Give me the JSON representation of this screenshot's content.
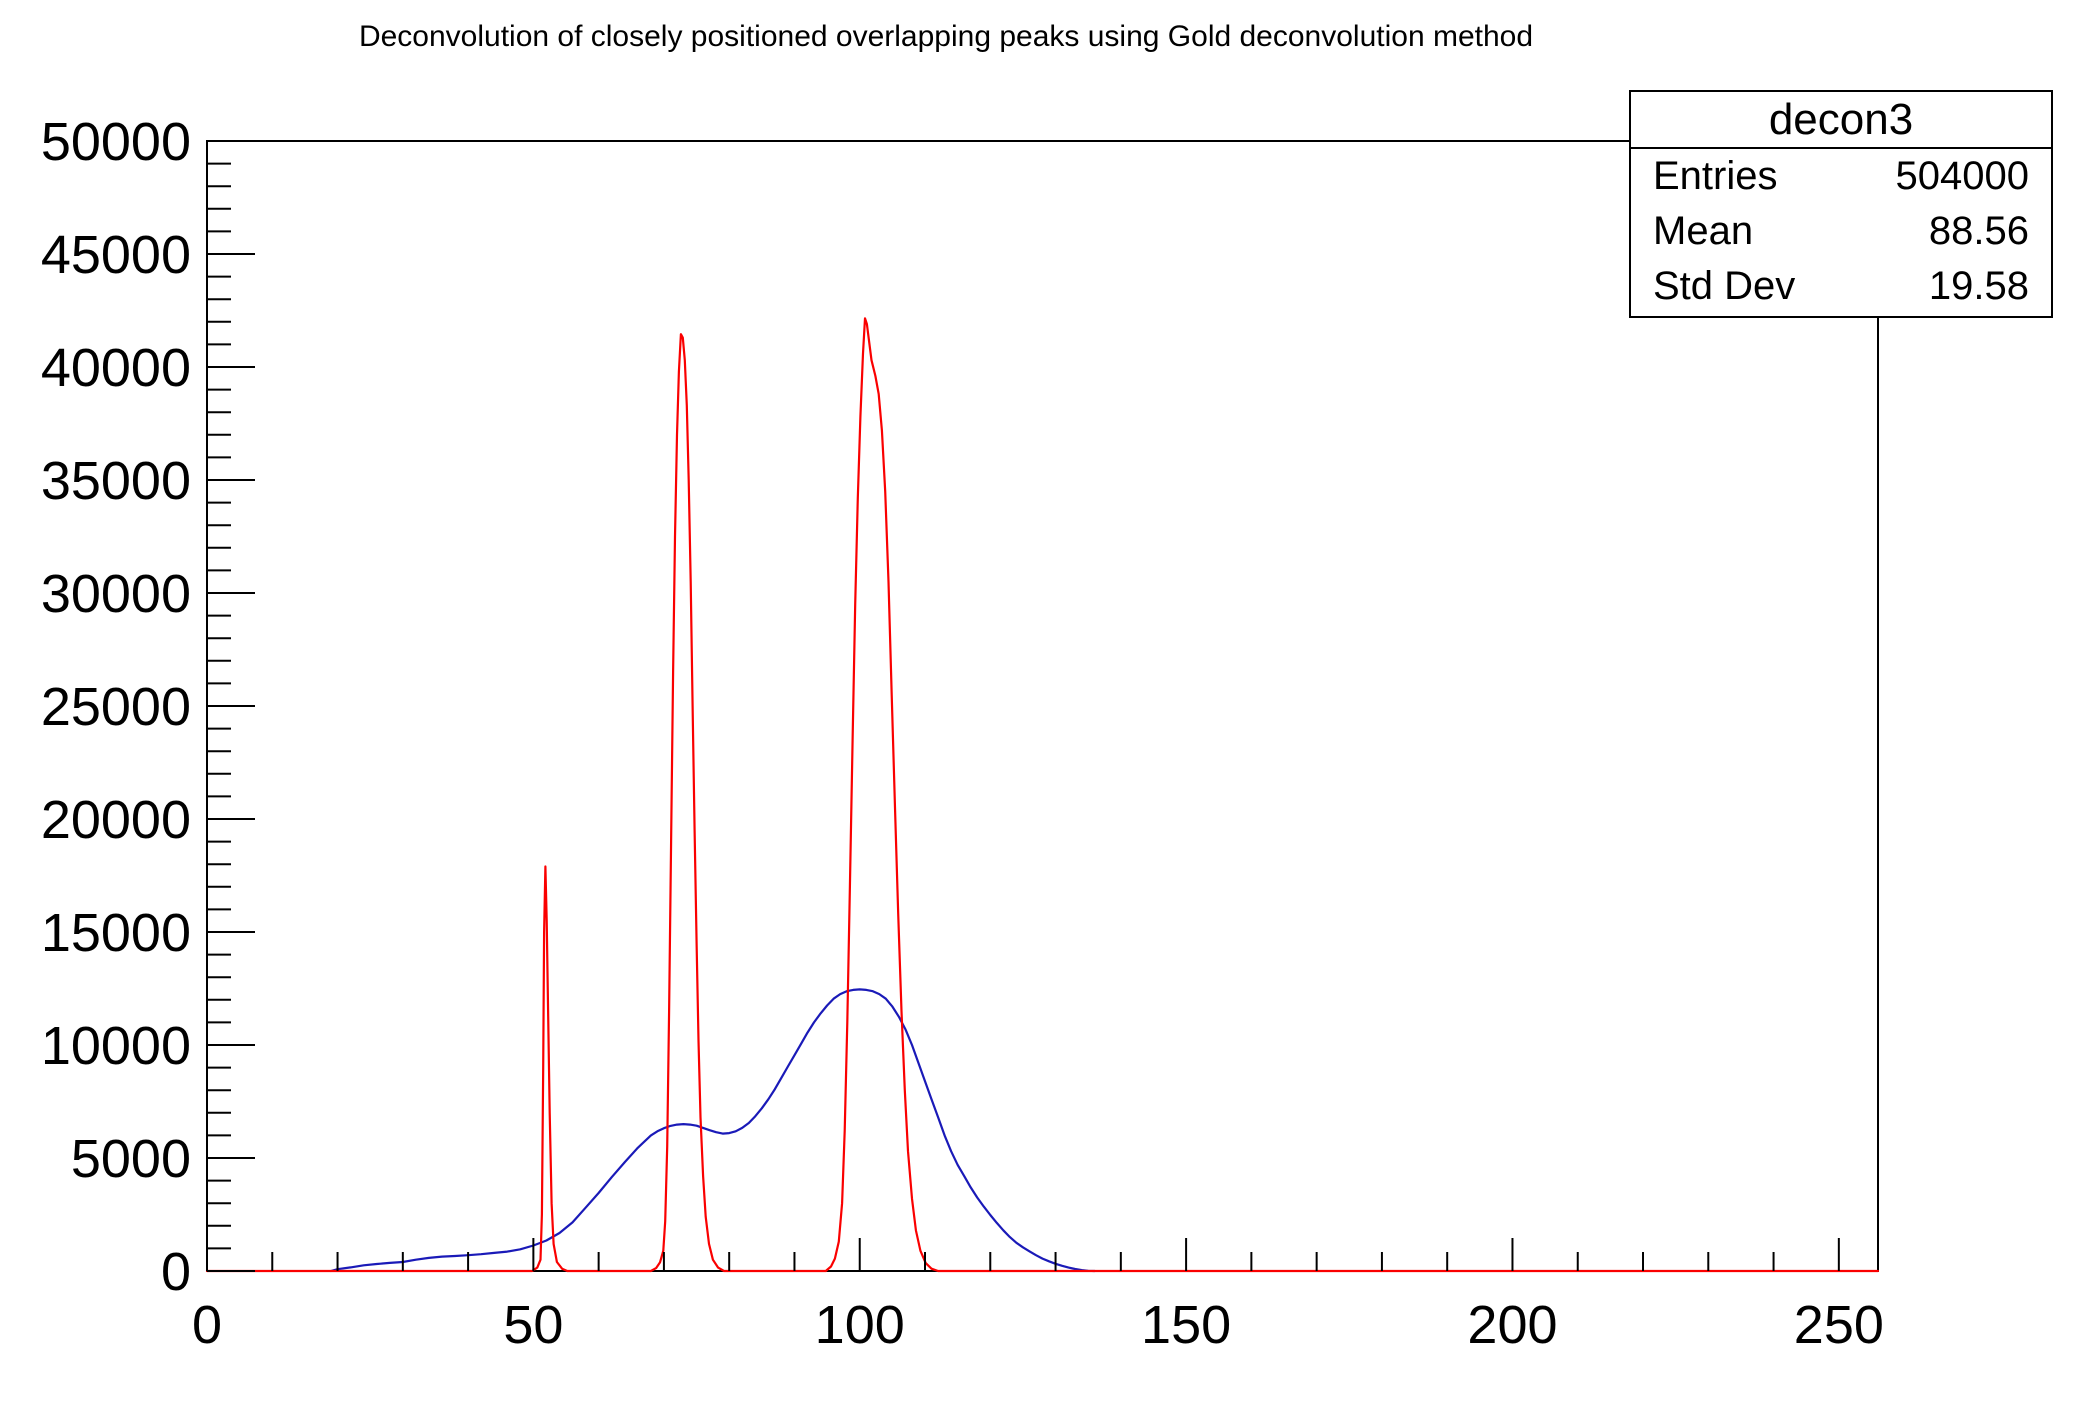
{
  "title": "Deconvolution of closely positioned overlapping peaks using Gold deconvolution method",
  "stats_box": {
    "title": "decon3",
    "rows": [
      {
        "label": "Entries",
        "value": "504000"
      },
      {
        "label": "Mean",
        "value": "88.56"
      },
      {
        "label": "Std Dev",
        "value": "19.58"
      }
    ]
  },
  "chart_data": {
    "type": "line",
    "title": "Deconvolution of closely positioned overlapping peaks using Gold deconvolution method",
    "xlabel": "",
    "ylabel": "",
    "grid": false,
    "legend_position": "none",
    "x_axis": {
      "min": 0,
      "max": 256,
      "major_ticks": [
        0,
        50,
        100,
        150,
        200,
        250
      ],
      "minor_step": 10,
      "major_every": 50
    },
    "y_axis": {
      "min": 0,
      "max": 50000,
      "major_ticks": [
        0,
        5000,
        10000,
        15000,
        20000,
        25000,
        30000,
        35000,
        40000,
        45000,
        50000
      ],
      "minor_step": 1000,
      "major_every": 5000
    },
    "colors": {
      "axis": "#000000",
      "source": "#1a1ab8",
      "deconvolution": "#fa0000"
    },
    "series": [
      {
        "name": "source spectrum (blue)",
        "color_key": "source",
        "points": [
          [
            19,
            0
          ],
          [
            20,
            80
          ],
          [
            22,
            160
          ],
          [
            24,
            250
          ],
          [
            26,
            310
          ],
          [
            28,
            360
          ],
          [
            30,
            400
          ],
          [
            32,
            500
          ],
          [
            34,
            580
          ],
          [
            36,
            635
          ],
          [
            38,
            665
          ],
          [
            40,
            700
          ],
          [
            42,
            745
          ],
          [
            44,
            800
          ],
          [
            46,
            860
          ],
          [
            48,
            960
          ],
          [
            50,
            1130
          ],
          [
            52,
            1350
          ],
          [
            54,
            1680
          ],
          [
            56,
            2150
          ],
          [
            58,
            2800
          ],
          [
            60,
            3450
          ],
          [
            62,
            4150
          ],
          [
            64,
            4820
          ],
          [
            66,
            5450
          ],
          [
            68,
            6000
          ],
          [
            69,
            6180
          ],
          [
            70,
            6320
          ],
          [
            71,
            6420
          ],
          [
            72,
            6480
          ],
          [
            73,
            6500
          ],
          [
            74,
            6480
          ],
          [
            75,
            6430
          ],
          [
            76,
            6330
          ],
          [
            77,
            6230
          ],
          [
            78,
            6140
          ],
          [
            79,
            6080
          ],
          [
            80,
            6100
          ],
          [
            81,
            6180
          ],
          [
            82,
            6330
          ],
          [
            83,
            6550
          ],
          [
            84,
            6850
          ],
          [
            85,
            7200
          ],
          [
            86,
            7600
          ],
          [
            87,
            8050
          ],
          [
            88,
            8550
          ],
          [
            89,
            9050
          ],
          [
            90,
            9550
          ],
          [
            91,
            10050
          ],
          [
            92,
            10550
          ],
          [
            93,
            11000
          ],
          [
            94,
            11400
          ],
          [
            95,
            11750
          ],
          [
            96,
            12050
          ],
          [
            97,
            12250
          ],
          [
            98,
            12380
          ],
          [
            99,
            12440
          ],
          [
            100,
            12460
          ],
          [
            101,
            12440
          ],
          [
            102,
            12380
          ],
          [
            103,
            12250
          ],
          [
            104,
            12050
          ],
          [
            105,
            11700
          ],
          [
            106,
            11250
          ],
          [
            107,
            10700
          ],
          [
            108,
            10000
          ],
          [
            109,
            9200
          ],
          [
            110,
            8400
          ],
          [
            111,
            7600
          ],
          [
            112,
            6800
          ],
          [
            113,
            6000
          ],
          [
            114,
            5300
          ],
          [
            115,
            4700
          ],
          [
            116,
            4200
          ],
          [
            117,
            3700
          ],
          [
            118,
            3250
          ],
          [
            119,
            2850
          ],
          [
            120,
            2480
          ],
          [
            121,
            2130
          ],
          [
            122,
            1800
          ],
          [
            123,
            1500
          ],
          [
            124,
            1250
          ],
          [
            125,
            1050
          ],
          [
            126,
            870
          ],
          [
            127,
            700
          ],
          [
            128,
            550
          ],
          [
            129,
            430
          ],
          [
            130,
            320
          ],
          [
            131,
            230
          ],
          [
            132,
            150
          ],
          [
            133,
            90
          ],
          [
            134,
            40
          ],
          [
            135,
            10
          ],
          [
            136,
            0
          ]
        ]
      },
      {
        "name": "decon3 Gold deconvolution result (red)",
        "color_key": "deconvolution",
        "points": [
          [
            0,
            0
          ],
          [
            49.8,
            0
          ],
          [
            50.6,
            150
          ],
          [
            51.1,
            500
          ],
          [
            51.3,
            2500
          ],
          [
            51.5,
            9000
          ],
          [
            51.65,
            15000
          ],
          [
            51.85,
            17900
          ],
          [
            52.05,
            15500
          ],
          [
            52.25,
            11500
          ],
          [
            52.5,
            7000
          ],
          [
            52.8,
            3000
          ],
          [
            53.1,
            1200
          ],
          [
            53.6,
            400
          ],
          [
            54.4,
            100
          ],
          [
            55.2,
            0
          ],
          [
            68,
            0
          ],
          [
            68.8,
            130
          ],
          [
            69.4,
            380
          ],
          [
            69.9,
            900
          ],
          [
            70.2,
            2200
          ],
          [
            70.5,
            5500
          ],
          [
            70.8,
            11500
          ],
          [
            71.1,
            19000
          ],
          [
            71.4,
            26500
          ],
          [
            71.7,
            32500
          ],
          [
            72.0,
            37000
          ],
          [
            72.3,
            39800
          ],
          [
            72.6,
            41450
          ],
          [
            72.9,
            41300
          ],
          [
            73.2,
            40300
          ],
          [
            73.5,
            38300
          ],
          [
            73.8,
            35000
          ],
          [
            74.1,
            30500
          ],
          [
            74.4,
            25000
          ],
          [
            74.7,
            19500
          ],
          [
            75.0,
            14500
          ],
          [
            75.3,
            10200
          ],
          [
            75.6,
            6800
          ],
          [
            76.0,
            4200
          ],
          [
            76.4,
            2400
          ],
          [
            76.9,
            1200
          ],
          [
            77.5,
            500
          ],
          [
            78.3,
            150
          ],
          [
            79.2,
            0
          ],
          [
            94.8,
            0
          ],
          [
            95.6,
            200
          ],
          [
            96.2,
            550
          ],
          [
            96.8,
            1300
          ],
          [
            97.3,
            3000
          ],
          [
            97.7,
            6200
          ],
          [
            98.1,
            11000
          ],
          [
            98.5,
            17000
          ],
          [
            98.9,
            23500
          ],
          [
            99.3,
            29500
          ],
          [
            99.7,
            34200
          ],
          [
            100.1,
            37800
          ],
          [
            100.5,
            40600
          ],
          [
            100.8,
            42150
          ],
          [
            101.1,
            41900
          ],
          [
            101.4,
            41200
          ],
          [
            101.8,
            40300
          ],
          [
            102.4,
            39600
          ],
          [
            102.9,
            38800
          ],
          [
            103.4,
            37200
          ],
          [
            103.9,
            34500
          ],
          [
            104.4,
            30500
          ],
          [
            104.9,
            25500
          ],
          [
            105.4,
            20500
          ],
          [
            105.9,
            15800
          ],
          [
            106.4,
            11500
          ],
          [
            106.9,
            8000
          ],
          [
            107.4,
            5300
          ],
          [
            108.0,
            3200
          ],
          [
            108.6,
            1800
          ],
          [
            109.3,
            900
          ],
          [
            110.1,
            350
          ],
          [
            111.0,
            100
          ],
          [
            112.0,
            0
          ],
          [
            256,
            0
          ]
        ]
      }
    ]
  }
}
